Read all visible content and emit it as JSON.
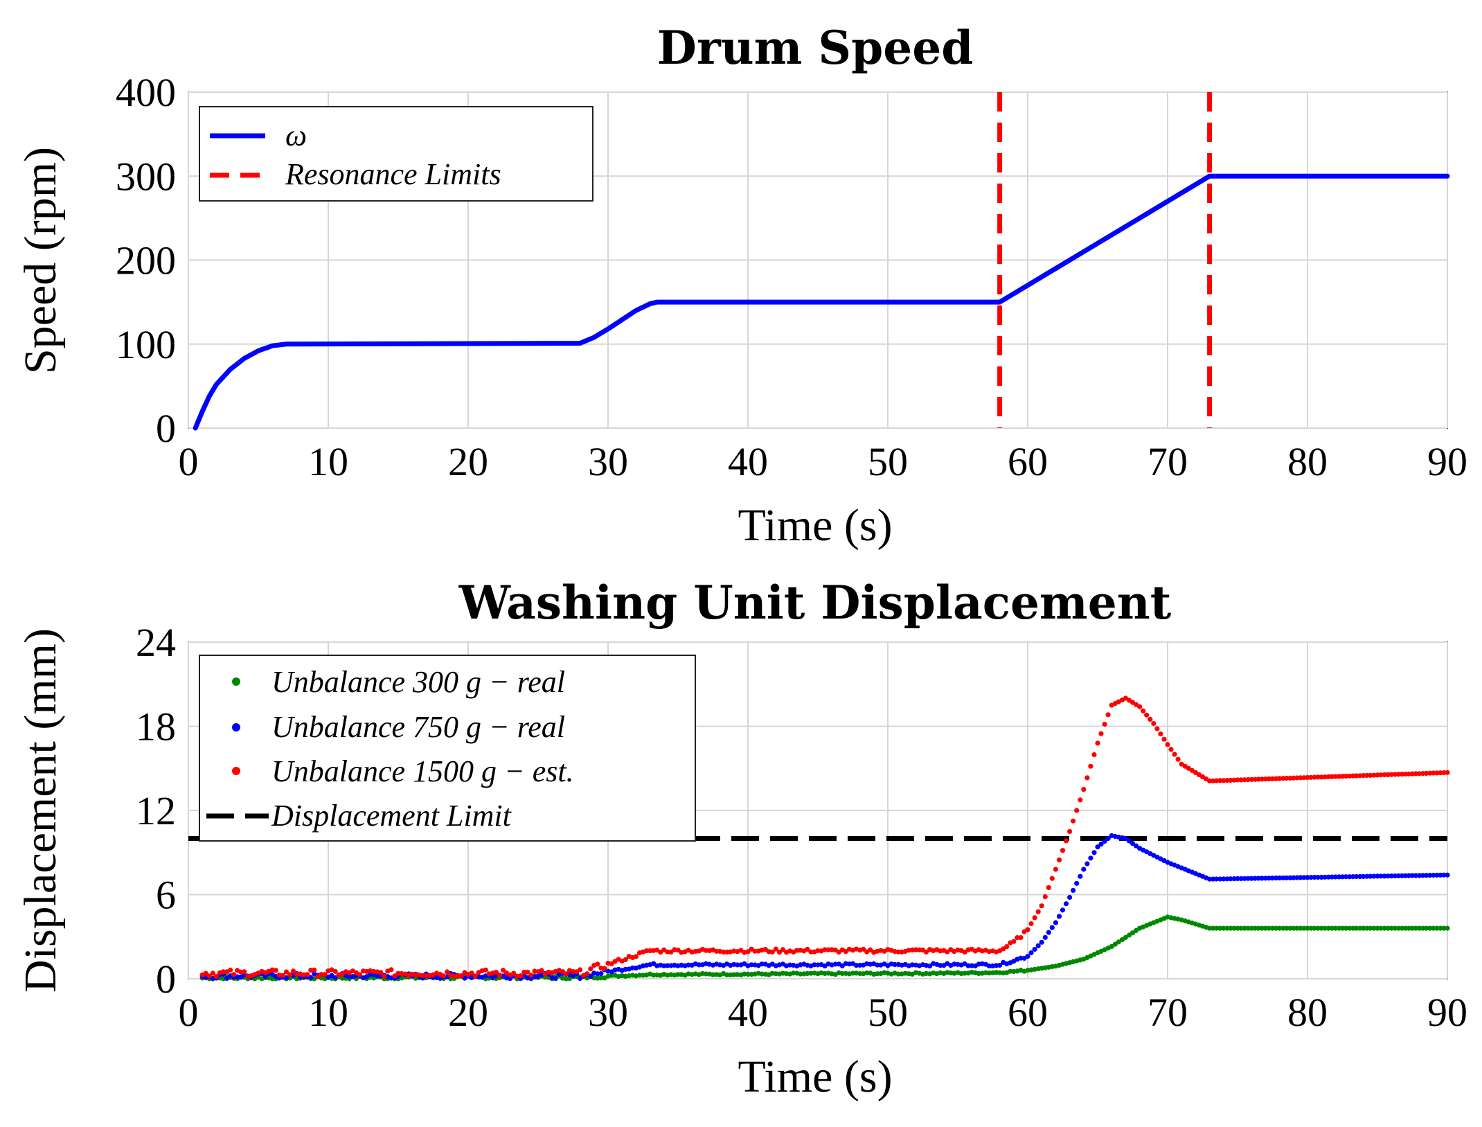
{
  "chart_data": [
    {
      "type": "line",
      "title": "Drum Speed",
      "xlabel": "Time (s)",
      "ylabel": "Speed (rpm)",
      "xlim": [
        0,
        90
      ],
      "ylim": [
        0,
        400
      ],
      "xticks": [
        "0",
        "10",
        "20",
        "30",
        "40",
        "50",
        "60",
        "70",
        "80",
        "90"
      ],
      "yticks": [
        "0",
        "100",
        "200",
        "300",
        "400"
      ],
      "grid": true,
      "legend_position": "top-left",
      "series": [
        {
          "name": "ω",
          "style": "solid",
          "color": "#0000ff",
          "x": [
            0.5,
            1.0,
            1.5,
            2.0,
            3.0,
            4.0,
            5.0,
            6.0,
            7.0,
            28.0,
            29.0,
            30.0,
            31.0,
            32.0,
            33.0,
            33.5,
            58.0,
            73.0,
            90.0
          ],
          "y": [
            0,
            20,
            38,
            52,
            70,
            83,
            92,
            98,
            100,
            101,
            108,
            118,
            129,
            140,
            148,
            150,
            150,
            300,
            300
          ]
        }
      ],
      "reference_lines": [
        {
          "name": "Resonance Limits",
          "orientation": "vertical",
          "x": [
            58,
            73
          ],
          "style": "dashed",
          "color": "#ff0000"
        }
      ]
    },
    {
      "type": "scatter",
      "title": "Washing Unit Displacement",
      "xlabel": "Time (s)",
      "ylabel": "Displacement (mm)",
      "xlim": [
        0,
        90
      ],
      "ylim": [
        0,
        24
      ],
      "xticks": [
        "0",
        "10",
        "20",
        "30",
        "40",
        "50",
        "60",
        "70",
        "80",
        "90"
      ],
      "yticks": [
        "0",
        "6",
        "12",
        "18",
        "24"
      ],
      "grid": true,
      "legend_position": "top-left",
      "series": [
        {
          "name": "Unbalance 300 g − real",
          "color": "#008800",
          "x": [
            0,
            28,
            33,
            55,
            58,
            60,
            62,
            64,
            66,
            68,
            70,
            71,
            73,
            90
          ],
          "y": [
            0.05,
            0.1,
            0.3,
            0.4,
            0.45,
            0.6,
            0.9,
            1.4,
            2.3,
            3.6,
            4.4,
            4.2,
            3.6,
            3.6
          ]
        },
        {
          "name": "Unbalance 750 g − real",
          "color": "#0000ff",
          "x": [
            0,
            28,
            33,
            58,
            60,
            61,
            62,
            63,
            64,
            65,
            66,
            67,
            68,
            70,
            73,
            90
          ],
          "y": [
            0.2,
            0.2,
            1.0,
            1.0,
            1.6,
            2.6,
            4.0,
            5.8,
            7.8,
            9.4,
            10.2,
            10.0,
            9.3,
            8.3,
            7.1,
            7.4
          ]
        },
        {
          "name": "Unbalance 1500 g − est.",
          "color": "#ff0000",
          "x": [
            0,
            28,
            33,
            58,
            59,
            60,
            61,
            62,
            63,
            64,
            65,
            66,
            67,
            68,
            69,
            70,
            71,
            73,
            90
          ],
          "y": [
            0.4,
            0.4,
            2.0,
            2.0,
            2.6,
            3.5,
            5.2,
            7.8,
            10.5,
            13.5,
            16.8,
            19.5,
            20.0,
            19.4,
            18.2,
            16.7,
            15.3,
            14.1,
            14.7
          ]
        }
      ],
      "reference_lines": [
        {
          "name": "Displacement Limit",
          "orientation": "horizontal",
          "y": 10,
          "style": "dashed",
          "color": "#000000"
        }
      ]
    }
  ]
}
